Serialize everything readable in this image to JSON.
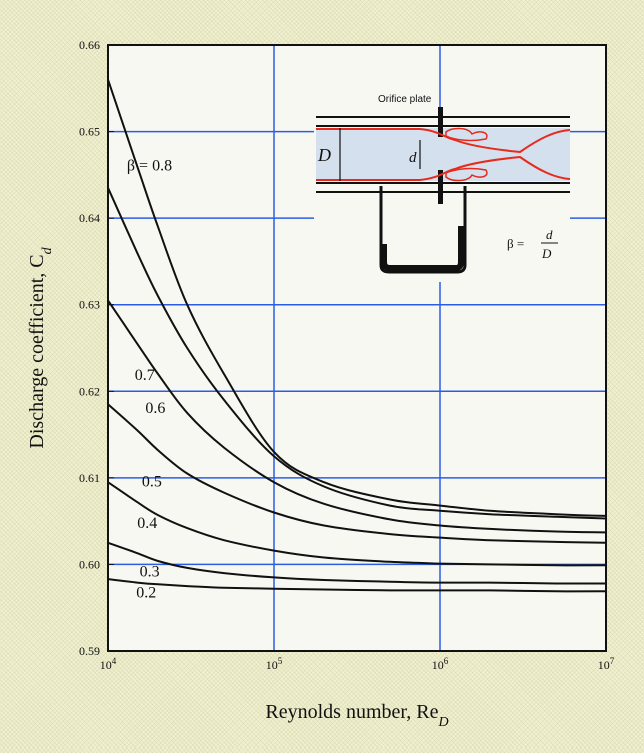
{
  "chart_data": {
    "type": "line",
    "title": "",
    "xlabel_main": "Reynolds number, Re",
    "xlabel_sub": "D",
    "ylabel_main": "Discharge coefficient, C",
    "ylabel_sub": "d",
    "x_scale": "log",
    "xlim": [
      10000,
      10000000
    ],
    "ylim": [
      0.59,
      0.66
    ],
    "x_ticks": [
      {
        "value": 10000,
        "base": "10",
        "exp": "4"
      },
      {
        "value": 100000,
        "base": "10",
        "exp": "5"
      },
      {
        "value": 1000000,
        "base": "10",
        "exp": "6"
      },
      {
        "value": 10000000,
        "base": "10",
        "exp": "7"
      }
    ],
    "y_ticks": [
      {
        "value": 0.59,
        "label": "0.59"
      },
      {
        "value": 0.6,
        "label": "0.60"
      },
      {
        "value": 0.61,
        "label": "0.61"
      },
      {
        "value": 0.62,
        "label": "0.62"
      },
      {
        "value": 0.63,
        "label": "0.63"
      },
      {
        "value": 0.64,
        "label": "0.64"
      },
      {
        "value": 0.65,
        "label": "0.65"
      },
      {
        "value": 0.66,
        "label": "0.66"
      }
    ],
    "grid": true,
    "grid_color": "#2b5ce6",
    "line_color": "#111111",
    "series": [
      {
        "name": "β = 0.8",
        "x": [
          10000,
          15000,
          20000,
          30000,
          50000,
          100000,
          200000,
          500000,
          1000000,
          2000000,
          5000000,
          10000000
        ],
        "y": [
          0.656,
          0.646,
          0.639,
          0.63,
          0.622,
          0.613,
          0.6095,
          0.6075,
          0.6068,
          0.6062,
          0.6058,
          0.6056
        ]
      },
      {
        "name": "0.7",
        "x": [
          10000,
          15000,
          20000,
          30000,
          50000,
          100000,
          200000,
          500000,
          1000000,
          2000000,
          5000000,
          10000000
        ],
        "y": [
          0.6435,
          0.636,
          0.631,
          0.625,
          0.619,
          0.6125,
          0.609,
          0.6068,
          0.6062,
          0.6058,
          0.6055,
          0.6053
        ]
      },
      {
        "name": "0.6",
        "x": [
          10000,
          15000,
          20000,
          30000,
          50000,
          100000,
          200000,
          500000,
          1000000,
          2000000,
          5000000,
          10000000
        ],
        "y": [
          0.6305,
          0.6255,
          0.622,
          0.6175,
          0.6135,
          0.6095,
          0.607,
          0.6052,
          0.6045,
          0.6041,
          0.6038,
          0.6037
        ]
      },
      {
        "name": "0.5",
        "x": [
          10000,
          15000,
          20000,
          30000,
          50000,
          100000,
          200000,
          500000,
          1000000,
          2000000,
          5000000,
          10000000
        ],
        "y": [
          0.6185,
          0.6155,
          0.6132,
          0.6105,
          0.6083,
          0.606,
          0.6045,
          0.6035,
          0.6031,
          0.6028,
          0.6026,
          0.6025
        ]
      },
      {
        "name": "0.4",
        "x": [
          10000,
          15000,
          20000,
          30000,
          50000,
          100000,
          200000,
          500000,
          1000000,
          2000000,
          5000000,
          10000000
        ],
        "y": [
          0.6095,
          0.6072,
          0.6057,
          0.6042,
          0.6028,
          0.6016,
          0.6008,
          0.6003,
          0.6001,
          0.6,
          0.5999,
          0.5999
        ]
      },
      {
        "name": "0.3",
        "x": [
          10000,
          15000,
          20000,
          30000,
          50000,
          100000,
          200000,
          500000,
          1000000,
          2000000,
          5000000,
          10000000
        ],
        "y": [
          0.6025,
          0.6013,
          0.6004,
          0.5996,
          0.599,
          0.5985,
          0.5982,
          0.598,
          0.5979,
          0.5979,
          0.5978,
          0.5978
        ]
      },
      {
        "name": "0.2",
        "x": [
          10000,
          15000,
          20000,
          30000,
          50000,
          100000,
          200000,
          500000,
          1000000,
          2000000,
          5000000,
          10000000
        ],
        "y": [
          0.5983,
          0.5979,
          0.5977,
          0.5975,
          0.5973,
          0.5972,
          0.5971,
          0.597,
          0.597,
          0.597,
          0.5969,
          0.5969
        ]
      }
    ],
    "curve_labels": [
      {
        "text": "β = 0.8",
        "x": 13000,
        "y": 0.6455
      },
      {
        "text": "0.7",
        "x": 14500,
        "y": 0.6213
      },
      {
        "text": "0.6",
        "x": 16800,
        "y": 0.6175
      },
      {
        "text": "0.5",
        "x": 16000,
        "y": 0.609
      },
      {
        "text": "0.4",
        "x": 15000,
        "y": 0.6042
      },
      {
        "text": "0.3",
        "x": 15500,
        "y": 0.5986
      },
      {
        "text": "0.2",
        "x": 14800,
        "y": 0.5962
      }
    ],
    "inset": {
      "plate_label": "Orifice plate",
      "D_label": "D",
      "d_label": "d",
      "beta_label": "β =",
      "frac_num": "d",
      "frac_den": "D"
    }
  }
}
